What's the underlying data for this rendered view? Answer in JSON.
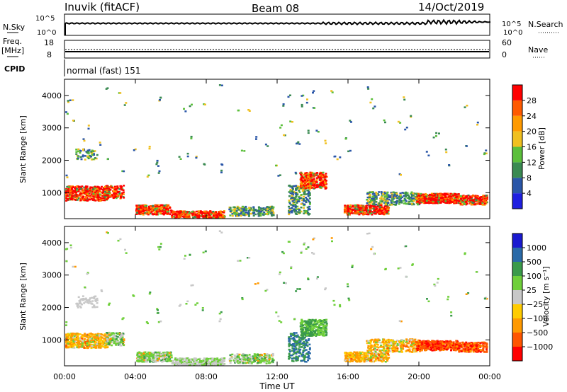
{
  "header": {
    "station": "Inuvik (fitACF)",
    "beam": "Beam 08",
    "date": "14/Oct/2019"
  },
  "colors": {
    "axis": "#000000",
    "power_scale": [
      "#1f1fe0",
      "#2a56a8",
      "#3a8a52",
      "#5bbf3b",
      "#f0c020",
      "#ff9a00",
      "#ff5a00",
      "#ff0000"
    ],
    "velocity_scale": [
      "#ff0000",
      "#ff5500",
      "#ff9900",
      "#ffcc00",
      "#c8c8c8",
      "#6fcf3a",
      "#3a9a4a",
      "#2a6aa8",
      "#1a1ad0"
    ]
  },
  "chart_data": [
    {
      "type": "line",
      "name": "nsky-nsearch",
      "left_label": "N.Sky",
      "right_label": "N.Search",
      "left_ticks": [
        "10^5",
        "10^0"
      ],
      "right_ticks": [
        "10^5",
        "10^0"
      ]
    },
    {
      "type": "line",
      "name": "freq-nave",
      "left_label_top": "Freq.",
      "left_label_unit": "[MHz]",
      "right_label": "Nave",
      "left_ticks": [
        "18",
        "8"
      ],
      "right_ticks": [
        "60",
        "0"
      ],
      "cpid_label": "CPID",
      "cpid_text": "normal (fast) 151"
    },
    {
      "type": "heatmap",
      "name": "power",
      "ylabel": "Slant Range [km]",
      "yticks": [
        "1000",
        "2000",
        "3000",
        "4000"
      ],
      "ylim": [
        200,
        4500
      ],
      "colorbar_label": "Power [dB]",
      "colorbar_ticks": [
        "4",
        "8",
        "12",
        "16",
        "20",
        "24",
        "28"
      ]
    },
    {
      "type": "heatmap",
      "name": "velocity",
      "ylabel": "Slant Range [km]",
      "yticks": [
        "1000",
        "2000",
        "3000",
        "4000"
      ],
      "ylim": [
        200,
        4500
      ],
      "colorbar_label": "Velocity [m s⁻¹]",
      "colorbar_ticks": [
        "1000",
        "500",
        "100",
        "25",
        "−25",
        "−100",
        "−500",
        "−1000"
      ]
    }
  ],
  "xaxis": {
    "label": "Time UT",
    "ticks": [
      "00:00",
      "04:00",
      "08:00",
      "12:00",
      "16:00",
      "20:00",
      "00:00"
    ]
  }
}
